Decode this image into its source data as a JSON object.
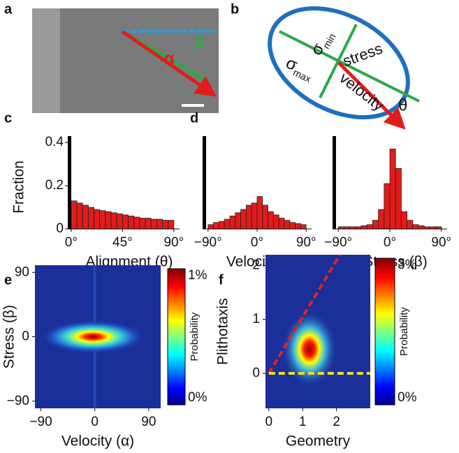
{
  "figure": {
    "panel_labels": [
      "a",
      "b",
      "c",
      "d",
      "e",
      "f"
    ],
    "diagram_a": {
      "alpha": "α",
      "beta": "β"
    },
    "diagram_b": {
      "sigma": "σ",
      "min": "min",
      "max": "max",
      "stress": "stress",
      "velocity": "velocity",
      "theta": "θ"
    }
  },
  "chart_data": [
    {
      "type": "histogram",
      "ylabel": "Fraction",
      "xlabel": "Alignment (θ)",
      "bins": [
        0,
        5,
        10,
        15,
        20,
        25,
        30,
        35,
        40,
        45,
        50,
        55,
        60,
        65,
        70,
        75,
        80,
        85,
        90
      ],
      "values": [
        0.13,
        0.12,
        0.11,
        0.1,
        0.09,
        0.085,
        0.08,
        0.075,
        0.07,
        0.065,
        0.06,
        0.055,
        0.05,
        0.05,
        0.045,
        0.045,
        0.04,
        0.04
      ],
      "color": "#e21b1b",
      "xlim": [
        -3,
        95
      ],
      "ylim": [
        0,
        0.42
      ],
      "xticks": [
        {
          "value": 0,
          "label": "0°"
        },
        {
          "value": 45,
          "label": "45°"
        },
        {
          "value": 90,
          "label": "90°"
        }
      ],
      "yticks": [
        0,
        0.2,
        0.4
      ]
    },
    {
      "type": "histogram",
      "xlabel": "Velocity (α)",
      "bins": [
        -90,
        -80,
        -70,
        -60,
        -50,
        -40,
        -30,
        -20,
        -10,
        0,
        10,
        20,
        30,
        40,
        50,
        60,
        70,
        80,
        90
      ],
      "values": [
        0.02,
        0.03,
        0.035,
        0.045,
        0.06,
        0.075,
        0.09,
        0.11,
        0.12,
        0.15,
        0.11,
        0.08,
        0.065,
        0.05,
        0.04,
        0.03,
        0.025,
        0.02
      ],
      "color": "#e21b1b",
      "xlim": [
        -100,
        100
      ],
      "ylim": [
        0,
        0.42
      ],
      "xticks": [
        {
          "value": -90,
          "label": "−90°"
        },
        {
          "value": 0,
          "label": "0°"
        },
        {
          "value": 90,
          "label": "90°"
        }
      ]
    },
    {
      "type": "histogram",
      "xlabel": "Stress (β)",
      "bins": [
        -90,
        -80,
        -70,
        -60,
        -50,
        -40,
        -30,
        -20,
        -10,
        0,
        10,
        20,
        30,
        40,
        50,
        60,
        70,
        80,
        90
      ],
      "values": [
        0.01,
        0.01,
        0.01,
        0.01,
        0.015,
        0.02,
        0.04,
        0.09,
        0.21,
        0.37,
        0.28,
        0.08,
        0.04,
        0.02,
        0.015,
        0.01,
        0.01,
        0.01
      ],
      "color": "#e21b1b",
      "xlim": [
        -100,
        100
      ],
      "ylim": [
        0,
        0.42
      ],
      "xticks": [
        {
          "value": -90,
          "label": "−90°"
        },
        {
          "value": 0,
          "label": "0°"
        },
        {
          "value": 90,
          "label": "90°"
        }
      ]
    },
    {
      "type": "heatmap",
      "xlabel": "Velocity (α)",
      "ylabel": "Stress (β)",
      "xlim": [
        -100,
        110
      ],
      "ylim": [
        -100,
        100
      ],
      "xticks": [
        {
          "value": -90,
          "label": "−90"
        },
        0,
        90
      ],
      "yticks": [
        {
          "value": -90,
          "label": "−90"
        },
        0,
        90
      ],
      "colorbar": {
        "label": "Probability",
        "lim": [
          0,
          1
        ],
        "ticks": [
          {
            "value": 0,
            "label": "0%"
          },
          {
            "value": 1,
            "label": "1%"
          }
        ]
      }
    },
    {
      "type": "heatmap",
      "xlabel": "Geometry",
      "ylabel": "Plithotaxis",
      "xlim": [
        -0.1,
        3
      ],
      "ylim": [
        -0.65,
        2.2
      ],
      "xticks": [
        0,
        1,
        2
      ],
      "yticks": [
        0,
        1,
        2
      ],
      "colorbar": {
        "label": "Probability",
        "lim": [
          0,
          3
        ],
        "ticks": [
          {
            "value": 0,
            "label": "0%"
          },
          {
            "value": 3,
            "label": "3%"
          }
        ]
      }
    }
  ]
}
